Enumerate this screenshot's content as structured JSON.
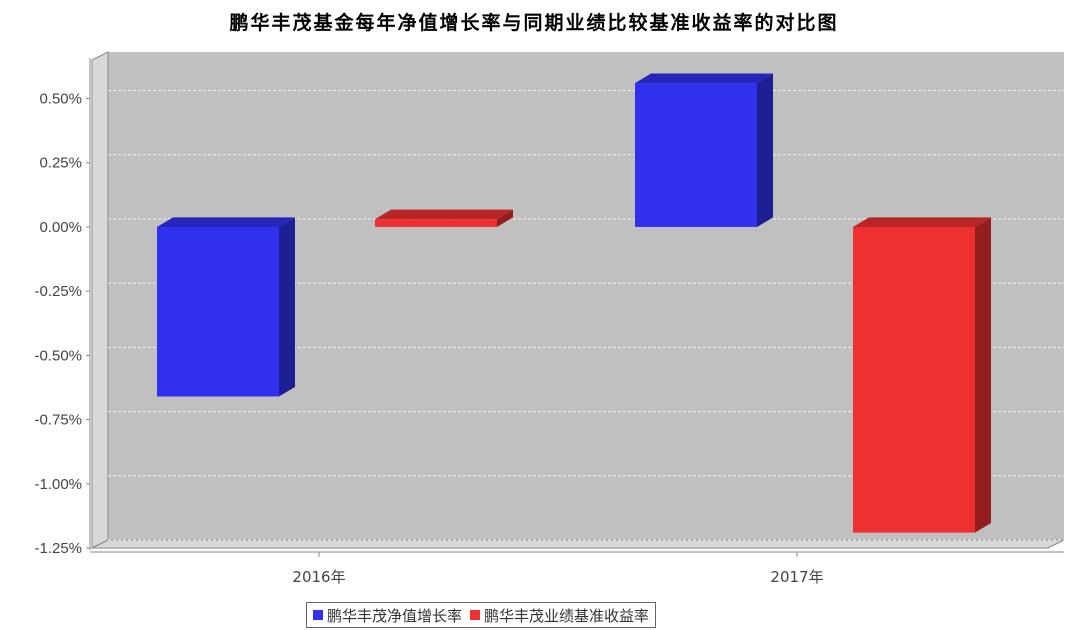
{
  "chart_data": {
    "type": "bar",
    "title": "鹏华丰茂基金每年净值增长率与同期业绩比较基准收益率的对比图",
    "xlabel": "",
    "ylabel": "",
    "categories": [
      "2016年",
      "2017年"
    ],
    "series": [
      {
        "name": "鹏华丰茂净值增长率",
        "values": [
          -0.66,
          0.56
        ],
        "color": "#3030ee"
      },
      {
        "name": "鹏华丰茂业绩基准收益率",
        "values": [
          0.03,
          -1.19
        ],
        "color": "#ee3030"
      }
    ],
    "ylim": [
      -1.25,
      0.65
    ],
    "yticks": [
      -1.25,
      -1.0,
      -0.75,
      -0.5,
      -0.25,
      0.0,
      0.25,
      0.5
    ],
    "ytick_labels": [
      "-1.25%",
      "-1.00%",
      "-0.75%",
      "-0.50%",
      "-0.25%",
      "0.00%",
      "0.25%",
      "0.50%"
    ],
    "grid": true,
    "legend_position": "bottom-center",
    "style": "3d-bars",
    "background_color": "#c0c0c0"
  }
}
